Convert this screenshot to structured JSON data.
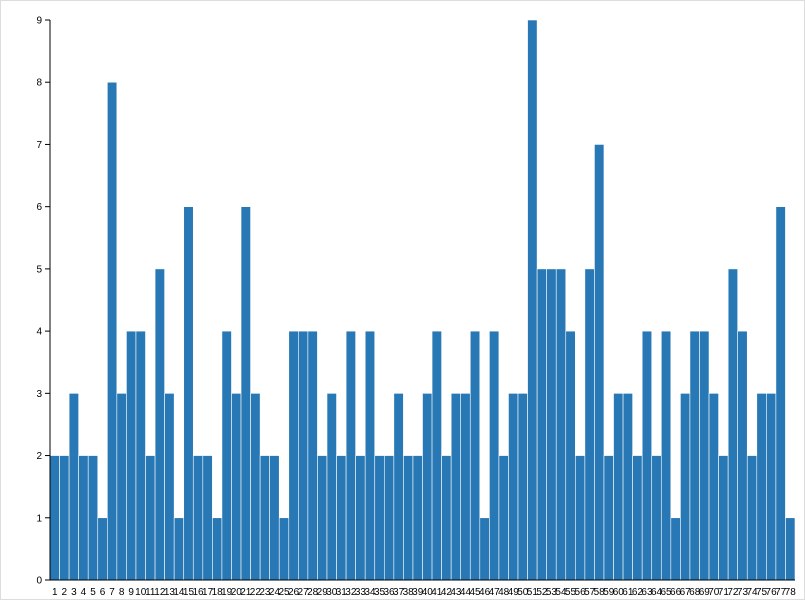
{
  "chart_data": {
    "type": "bar",
    "categories": [
      "1",
      "2",
      "3",
      "4",
      "5",
      "6",
      "7",
      "8",
      "9",
      "10",
      "11",
      "12",
      "13",
      "14",
      "15",
      "16",
      "17",
      "18",
      "19",
      "20",
      "21",
      "22",
      "23",
      "24",
      "25",
      "26",
      "27",
      "28",
      "29",
      "30",
      "31",
      "32",
      "33",
      "34",
      "35",
      "36",
      "37",
      "38",
      "39",
      "40",
      "41",
      "42",
      "43",
      "44",
      "45",
      "46",
      "47",
      "48",
      "49",
      "50",
      "51",
      "52",
      "53",
      "54",
      "55",
      "56",
      "57",
      "58",
      "59",
      "60",
      "61",
      "62",
      "63",
      "64",
      "65",
      "66",
      "67",
      "68",
      "69",
      "70",
      "71",
      "72",
      "73",
      "74",
      "75",
      "76",
      "77",
      "78"
    ],
    "values": [
      2,
      2,
      3,
      2,
      2,
      1,
      8,
      3,
      4,
      4,
      2,
      5,
      3,
      1,
      6,
      2,
      2,
      1,
      4,
      3,
      6,
      3,
      2,
      2,
      1,
      4,
      4,
      4,
      2,
      3,
      2,
      4,
      2,
      4,
      2,
      2,
      3,
      2,
      2,
      3,
      4,
      2,
      3,
      3,
      4,
      1,
      4,
      2,
      3,
      3,
      9,
      5,
      5,
      5,
      4,
      2,
      5,
      7,
      2,
      3,
      3,
      2,
      4,
      2,
      4,
      1,
      3,
      4,
      4,
      3,
      2,
      5,
      4,
      2,
      3,
      3,
      6,
      1
    ],
    "color": "#2878b5",
    "ylim": [
      0,
      9
    ],
    "yticks": [
      0,
      1,
      2,
      3,
      4,
      5,
      6,
      7,
      8,
      9
    ]
  }
}
